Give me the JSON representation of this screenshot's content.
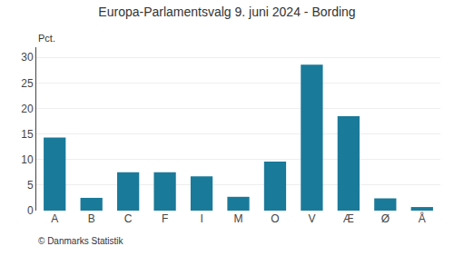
{
  "chart_data": {
    "type": "bar",
    "title": "Europa-Parlamentsvalg 9. juni 2024 - Bording",
    "categories": [
      "A",
      "B",
      "C",
      "F",
      "I",
      "M",
      "O",
      "V",
      "Æ",
      "Ø",
      "Å"
    ],
    "values": [
      14.3,
      2.5,
      7.5,
      7.5,
      6.7,
      2.7,
      9.6,
      28.6,
      18.5,
      2.4,
      0.7
    ],
    "color": "#1a7a9a",
    "ylabel": "Pct.",
    "ylim": [
      0,
      32
    ],
    "yticks": [
      0,
      5,
      10,
      15,
      20,
      25,
      30
    ],
    "grid": true,
    "annotations": [
      "© Danmarks Statistik"
    ]
  }
}
